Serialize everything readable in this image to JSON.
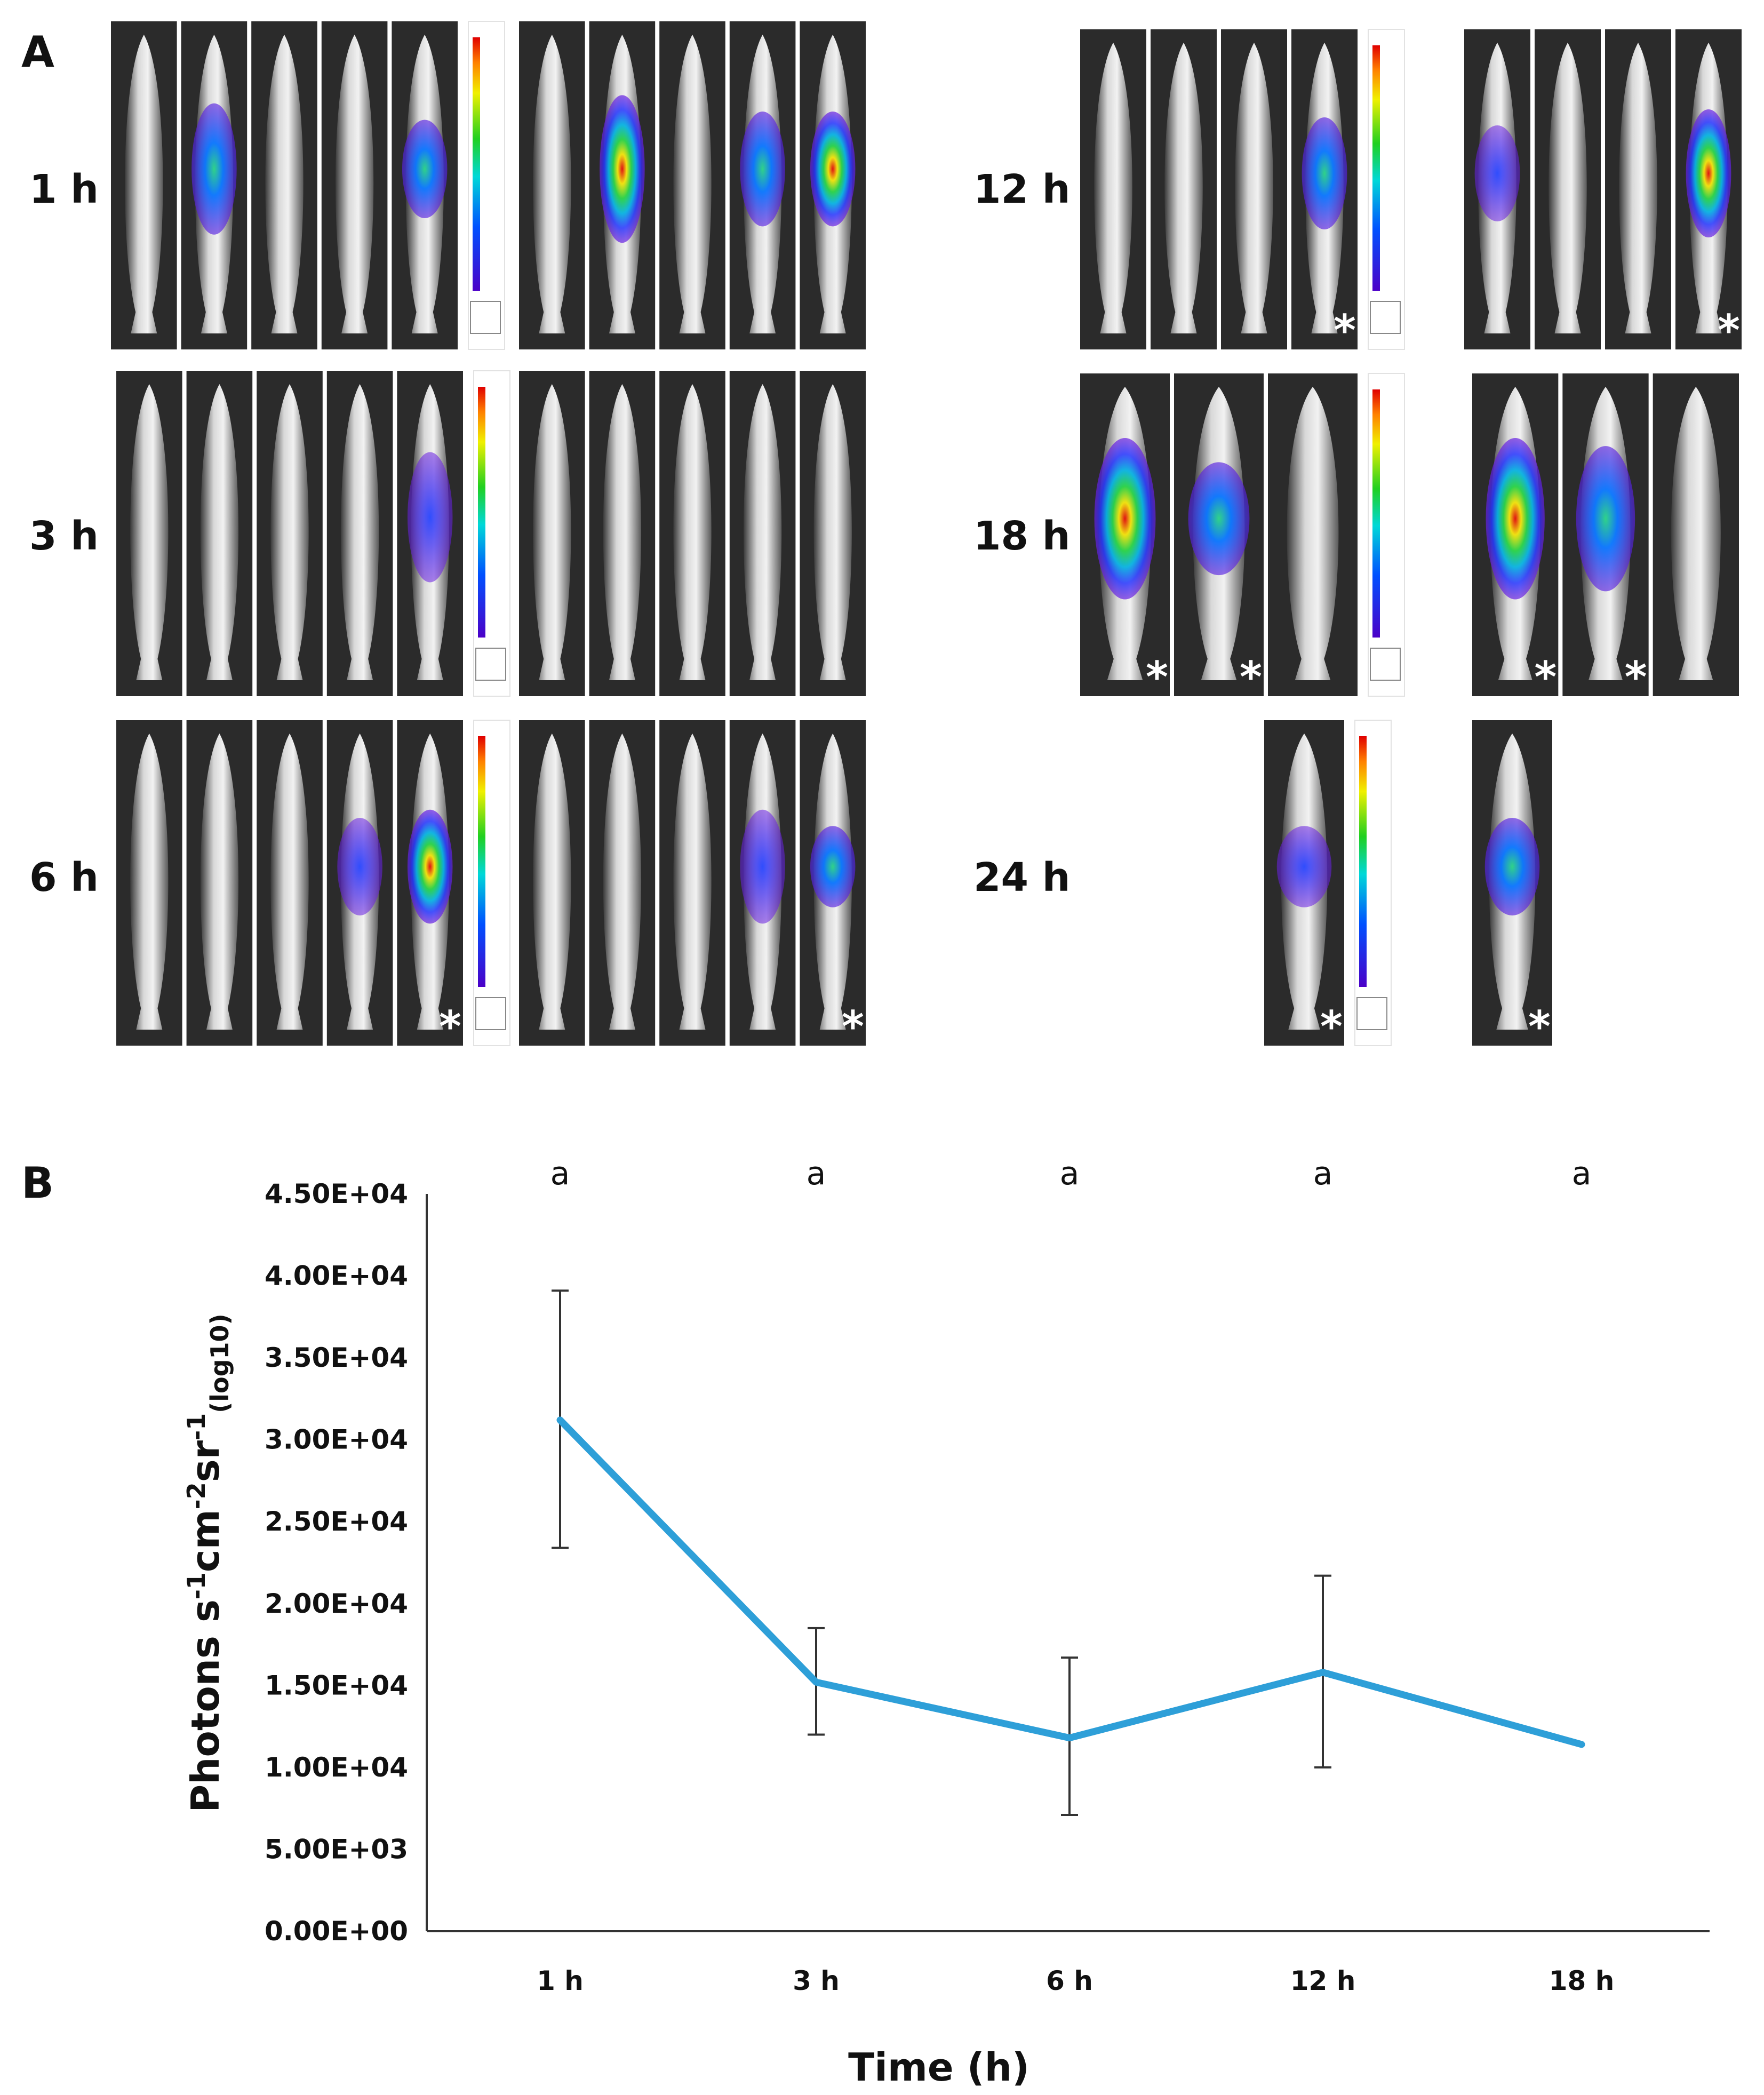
{
  "panel_a": {
    "label": "A",
    "rows": [
      {
        "time": "1 h"
      },
      {
        "time": "3 h"
      },
      {
        "time": "6 h"
      },
      {
        "time": "12 h"
      },
      {
        "time": "18 h"
      },
      {
        "time": "24 h"
      }
    ],
    "marker": "*"
  },
  "panel_b": {
    "label": "B"
  },
  "chart_data": {
    "type": "line",
    "title": "",
    "categories": [
      "1 h",
      "3 h",
      "6 h",
      "12 h",
      "18 h"
    ],
    "series": [
      {
        "name": "Photons",
        "color": "#2e9fd8",
        "values": [
          31200,
          15200,
          11800,
          15800,
          11400
        ],
        "error_low": [
          23400,
          12000,
          7100,
          10000,
          null
        ],
        "error_high": [
          39100,
          18500,
          16700,
          21700,
          null
        ]
      }
    ],
    "significance": [
      "a",
      "a",
      "a",
      "a",
      "a"
    ],
    "xlabel": "Time (h)",
    "ylabel": {
      "base": "Photons s",
      "sup1": "-1",
      "mid1": "cm",
      "sup2": "-2",
      "mid2": "sr",
      "sup3": "-1",
      "sub": "(log10)"
    },
    "ylim": [
      0,
      45000
    ],
    "yticks": [
      "0.00E+00",
      "5.00E+03",
      "1.00E+04",
      "1.50E+04",
      "2.00E+04",
      "2.50E+04",
      "3.00E+04",
      "3.50E+04",
      "4.00E+04",
      "4.50E+04"
    ],
    "grid": false
  }
}
